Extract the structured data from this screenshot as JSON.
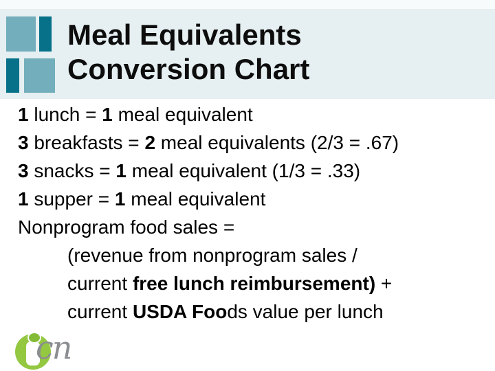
{
  "slide": {
    "title_line1": "Meal Equivalents",
    "title_line2": "Conversion Chart"
  },
  "body": {
    "lines": [
      {
        "indent": false,
        "segments": [
          {
            "text": "1",
            "bold": true
          },
          {
            "text": " lunch = ",
            "bold": false
          },
          {
            "text": "1",
            "bold": true
          },
          {
            "text": " meal equivalent",
            "bold": false
          }
        ]
      },
      {
        "indent": false,
        "segments": [
          {
            "text": "3",
            "bold": true
          },
          {
            "text": " breakfasts = ",
            "bold": false
          },
          {
            "text": "2",
            "bold": true
          },
          {
            "text": " meal equivalents (2/3 = .67)",
            "bold": false
          }
        ]
      },
      {
        "indent": false,
        "segments": [
          {
            "text": "3",
            "bold": true
          },
          {
            "text": " snacks = ",
            "bold": false
          },
          {
            "text": "1",
            "bold": true
          },
          {
            "text": " meal equivalent (1/3 = .33)",
            "bold": false
          }
        ]
      },
      {
        "indent": false,
        "segments": [
          {
            "text": "1",
            "bold": true
          },
          {
            "text": " supper = ",
            "bold": false
          },
          {
            "text": "1",
            "bold": true
          },
          {
            "text": " meal equivalent",
            "bold": false
          }
        ]
      },
      {
        "indent": false,
        "segments": [
          {
            "text": "Nonprogram food sales =",
            "bold": false
          }
        ]
      },
      {
        "indent": true,
        "segments": [
          {
            "text": "(revenue from nonprogram sales /",
            "bold": false
          }
        ]
      },
      {
        "indent": true,
        "segments": [
          {
            "text": "current ",
            "bold": false
          },
          {
            "text": "free lunch reimbursement)",
            "bold": true
          },
          {
            "text": " +",
            "bold": false
          }
        ]
      },
      {
        "indent": true,
        "segments": [
          {
            "text": "current ",
            "bold": false
          },
          {
            "text": "USDA Foo",
            "bold": true
          },
          {
            "text": "ds value per lunch",
            "bold": false
          }
        ]
      }
    ]
  },
  "logo": {
    "text": "cn"
  },
  "colors": {
    "title_band": "#e6eff1",
    "deco_light_teal": "#72aebb",
    "deco_dark_teal": "#077189",
    "logo_green": "#94c841",
    "logo_dot_green": "#83bb37",
    "logo_gray": "#8b8e91",
    "text_black": "#000000"
  }
}
